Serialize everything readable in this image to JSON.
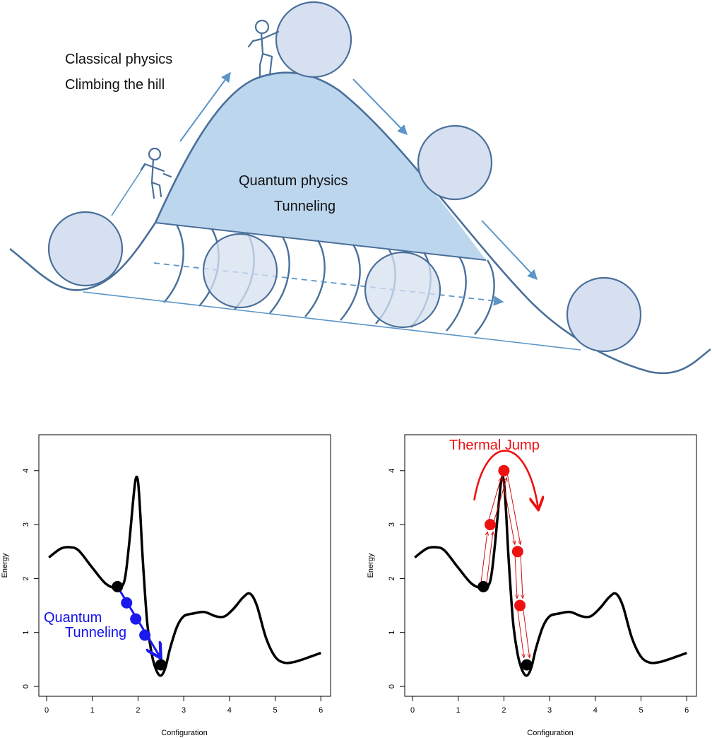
{
  "top_diagram": {
    "classical_line1": "Classical physics",
    "classical_line2": "Climbing the hill",
    "quantum_line1": "Quantum physics",
    "quantum_line2": "Tunneling",
    "colors": {
      "stroke": "#4a6f9a",
      "hill_fill": "#bcd6ee",
      "ball_fill": "#d6e0f0",
      "arrow": "#5b95c8"
    }
  },
  "chart_data": [
    {
      "type": "line",
      "xlabel": "Configuration",
      "ylabel": "Energy",
      "xlim": [
        0,
        6
      ],
      "ylim": [
        0,
        4.5
      ],
      "xticks": [
        "0",
        "1",
        "2",
        "3",
        "4",
        "5",
        "6"
      ],
      "yticks": [
        "0",
        "1",
        "2",
        "3",
        "4"
      ],
      "annotation": [
        "Quantum",
        "Tunneling"
      ],
      "annotation_color": "#1111ee",
      "series": [
        {
          "x": [
            0.05,
            0.3,
            0.5,
            0.7,
            1.0,
            1.3,
            1.55,
            1.7,
            1.8,
            1.9,
            1.95,
            2.0,
            2.05,
            2.1,
            2.2,
            2.3,
            2.4,
            2.5,
            2.6,
            2.7,
            2.85,
            3.0,
            3.2,
            3.45,
            3.7,
            3.9,
            4.1,
            4.3,
            4.45,
            4.6,
            4.8,
            5.0,
            5.2,
            5.4,
            5.6,
            5.8,
            6.0
          ],
          "y": [
            2.39,
            2.55,
            2.58,
            2.52,
            2.2,
            1.9,
            1.83,
            1.95,
            2.6,
            3.5,
            3.85,
            3.8,
            3.2,
            2.4,
            1.2,
            0.6,
            0.3,
            0.2,
            0.35,
            0.7,
            1.1,
            1.3,
            1.35,
            1.38,
            1.3,
            1.3,
            1.45,
            1.65,
            1.72,
            1.5,
            0.9,
            0.55,
            0.44,
            0.45,
            0.5,
            0.56,
            0.62
          ]
        }
      ],
      "points": [
        {
          "x": 1.55,
          "y": 1.85,
          "color": "#000000"
        },
        {
          "x": 1.75,
          "y": 1.55,
          "color": "#1a1aee"
        },
        {
          "x": 1.95,
          "y": 1.25,
          "color": "#1a1aee"
        },
        {
          "x": 2.15,
          "y": 0.95,
          "color": "#1a1aee"
        },
        {
          "x": 2.5,
          "y": 0.4,
          "color": "#000000"
        }
      ]
    },
    {
      "type": "line",
      "xlabel": "Configuration",
      "ylabel": "Energy",
      "xlim": [
        0,
        6
      ],
      "ylim": [
        0,
        4.5
      ],
      "xticks": [
        "0",
        "1",
        "2",
        "3",
        "4",
        "5",
        "6"
      ],
      "yticks": [
        "0",
        "1",
        "2",
        "3",
        "4"
      ],
      "annotation": [
        "Thermal Jump"
      ],
      "annotation_color": "#ee1111",
      "series": [
        {
          "x": [
            0.05,
            0.3,
            0.5,
            0.7,
            1.0,
            1.3,
            1.55,
            1.7,
            1.8,
            1.9,
            1.95,
            2.0,
            2.05,
            2.1,
            2.2,
            2.3,
            2.4,
            2.5,
            2.6,
            2.7,
            2.85,
            3.0,
            3.2,
            3.45,
            3.7,
            3.9,
            4.1,
            4.3,
            4.45,
            4.6,
            4.8,
            5.0,
            5.2,
            5.4,
            5.6,
            5.8,
            6.0
          ],
          "y": [
            2.39,
            2.55,
            2.58,
            2.52,
            2.2,
            1.9,
            1.83,
            1.95,
            2.6,
            3.5,
            3.85,
            3.8,
            3.2,
            2.4,
            1.2,
            0.6,
            0.3,
            0.2,
            0.35,
            0.7,
            1.1,
            1.3,
            1.35,
            1.38,
            1.3,
            1.3,
            1.45,
            1.65,
            1.72,
            1.5,
            0.9,
            0.55,
            0.44,
            0.45,
            0.5,
            0.56,
            0.62
          ]
        }
      ],
      "points": [
        {
          "x": 1.55,
          "y": 1.85,
          "color": "#000000"
        },
        {
          "x": 1.7,
          "y": 3.0,
          "color": "#ee1111"
        },
        {
          "x": 2.0,
          "y": 4.0,
          "color": "#ee1111"
        },
        {
          "x": 2.3,
          "y": 2.5,
          "color": "#ee1111"
        },
        {
          "x": 2.35,
          "y": 1.5,
          "color": "#ee1111"
        },
        {
          "x": 2.5,
          "y": 0.4,
          "color": "#000000"
        }
      ]
    }
  ]
}
